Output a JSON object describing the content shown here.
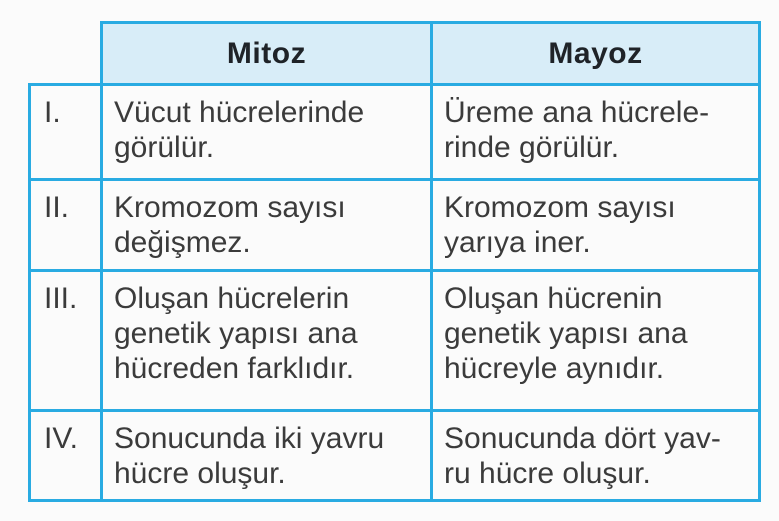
{
  "table": {
    "header": {
      "corner": "",
      "mitoz": "Mitoz",
      "mayoz": "Mayoz"
    },
    "rows": [
      {
        "num": "I.",
        "mitoz": "Vücut hücrelerinde\ngörülür.",
        "mayoz": "Üreme ana hücrele-\nrinde görülür."
      },
      {
        "num": "II.",
        "mitoz": "Kromozom sayısı\ndeğişmez.",
        "mayoz": "Kromozom sayısı\nyarıya iner."
      },
      {
        "num": "III.",
        "mitoz": "Oluşan hücrelerin\ngenetik yapısı ana\nhücreden farklıdır.",
        "mayoz": "Oluşan hücrenin\ngenetik yapısı ana\nhücreyle aynıdır."
      },
      {
        "num": "IV.",
        "mitoz": "Sonucunda iki yavru\nhücre oluşur.",
        "mayoz": "Sonucunda dört yav-\nru hücre oluşur."
      }
    ],
    "colors": {
      "border": "#29abe2",
      "header_bg": "#d8edf8",
      "header_text": "#1f2328",
      "body_text": "#3b3b3b",
      "page_bg": "#fbfbfb",
      "cell_bg": "#fbfbfb"
    }
  }
}
